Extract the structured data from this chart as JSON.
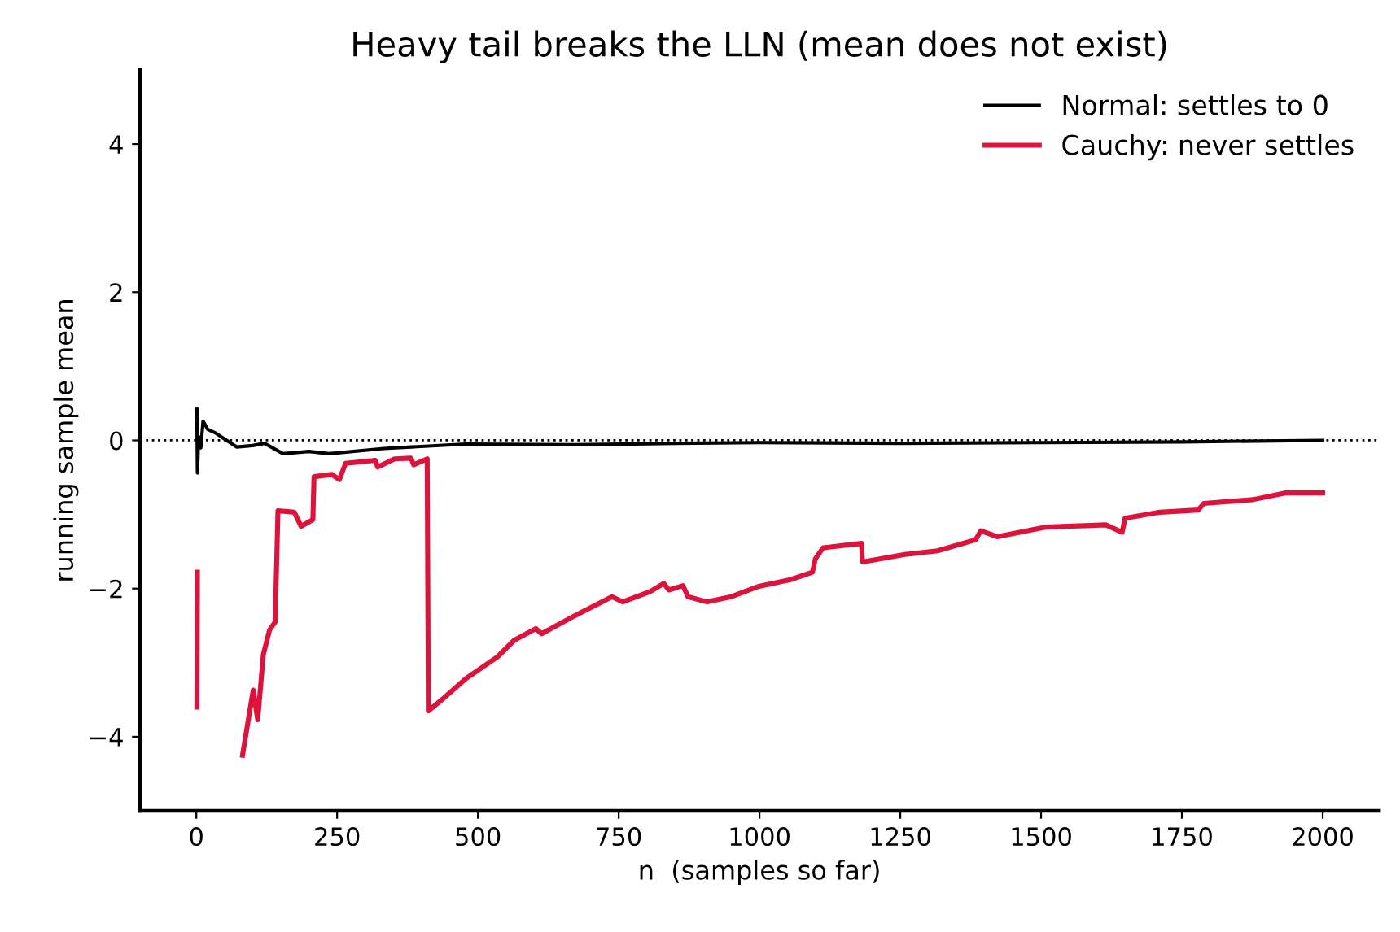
{
  "chart_data": {
    "type": "line",
    "title": "Heavy tail breaks the LLN (mean does not exist)",
    "xlabel": "n  (samples so far)",
    "ylabel": "running sample mean",
    "xlim": [
      -100,
      2100
    ],
    "ylim": [
      -5,
      5
    ],
    "xticks": [
      0,
      250,
      500,
      750,
      1000,
      1250,
      1500,
      1750,
      2000
    ],
    "yticks": [
      -4,
      -2,
      0,
      2,
      4
    ],
    "grid": false,
    "legend": "top right",
    "marker": "none",
    "line_style": "solid",
    "ref_lines": [
      {
        "axis": "y",
        "value": 0,
        "color": "#000000",
        "line_style": "dotted"
      }
    ],
    "series": [
      {
        "name": "Normal: settles to 0",
        "color": "#000000",
        "x": [
          1,
          2,
          4,
          8,
          12,
          20,
          34,
          50,
          72,
          100,
          121,
          154,
          200,
          236,
          333,
          478,
          671,
          850,
          1000,
          1250,
          1500,
          1750,
          2000
        ],
        "values": [
          0.42,
          -0.44,
          0.05,
          -0.1,
          0.26,
          0.15,
          0.1,
          0.02,
          -0.09,
          -0.07,
          -0.04,
          -0.18,
          -0.15,
          -0.18,
          -0.11,
          -0.05,
          -0.06,
          -0.04,
          -0.03,
          -0.04,
          -0.03,
          -0.02,
          0.0
        ]
      },
      {
        "name": "Cauchy: never settles",
        "color": "#dc143c",
        "x": [
          1,
          2,
          3,
          4,
          70,
          82,
          101,
          109,
          119,
          130,
          140,
          145,
          174,
          186,
          207,
          209,
          241,
          254,
          265,
          318,
          322,
          352,
          381,
          386,
          410,
          412,
          439,
          478,
          535,
          564,
          603,
          613,
          671,
          738,
          757,
          806,
          830,
          839,
          864,
          873,
          907,
          950,
          999,
          1055,
          1094,
          1099,
          1113,
          1181,
          1183,
          1258,
          1316,
          1384,
          1393,
          1422,
          1509,
          1615,
          1644,
          1649,
          1711,
          1779,
          1789,
          1876,
          1933,
          2000
        ],
        "values": [
          -3.6,
          -1.78,
          null,
          null,
          null,
          -4.25,
          -3.37,
          -3.77,
          -2.89,
          -2.56,
          -2.45,
          -0.95,
          -0.97,
          -1.16,
          -1.07,
          -0.49,
          -0.46,
          -0.53,
          -0.31,
          -0.27,
          -0.36,
          -0.25,
          -0.24,
          -0.33,
          -0.25,
          -3.65,
          -3.48,
          -3.22,
          -2.92,
          -2.7,
          -2.54,
          -2.61,
          -2.37,
          -2.11,
          -2.18,
          -2.04,
          -1.93,
          -2.02,
          -1.96,
          -2.11,
          -2.18,
          -2.11,
          -1.97,
          -1.88,
          -1.78,
          -1.6,
          -1.45,
          -1.39,
          -1.64,
          -1.54,
          -1.49,
          -1.34,
          -1.22,
          -1.3,
          -1.17,
          -1.14,
          -1.24,
          -1.05,
          -0.97,
          -0.94,
          -0.85,
          -0.8,
          -0.71,
          -0.71
        ]
      }
    ]
  }
}
